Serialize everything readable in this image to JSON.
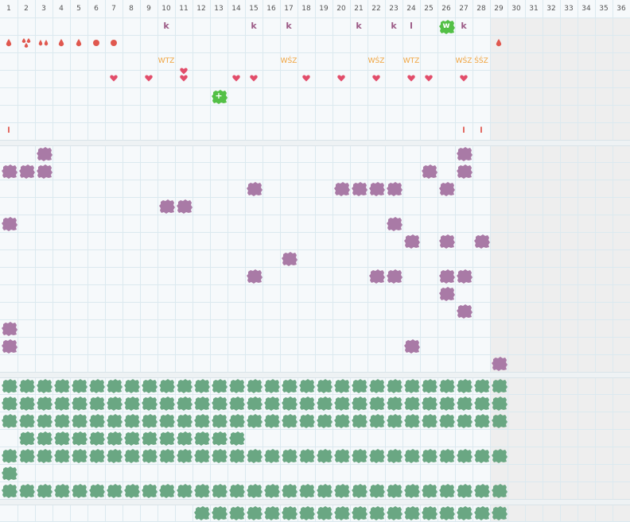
{
  "days": [
    "1",
    "2",
    "3",
    "4",
    "5",
    "6",
    "7",
    "8",
    "9",
    "10",
    "11",
    "12",
    "13",
    "14",
    "15",
    "16",
    "17",
    "18",
    "19",
    "20",
    "21",
    "22",
    "23",
    "24",
    "25",
    "26",
    "27",
    "28",
    "29",
    "30",
    "31",
    "32",
    "33",
    "34",
    "35",
    "36"
  ],
  "colors": {
    "purple_blob": "#a97aa6",
    "green_blob": "#6aa783",
    "bright_green": "#53c046",
    "heart_red": "#e24d6a",
    "drop_red": "#e0584f",
    "letter_purple": "#9c5a86",
    "text_orange": "#f0a23a",
    "grid_line": "#dbe9ef",
    "off_month": "#eeeeee"
  },
  "top_rows": {
    "k_marks": [
      {
        "day": 10,
        "text": "k"
      },
      {
        "day": 15,
        "text": "k"
      },
      {
        "day": 17,
        "text": "k"
      },
      {
        "day": 21,
        "text": "k"
      },
      {
        "day": 23,
        "text": "k"
      },
      {
        "day": 24,
        "text": "l"
      },
      {
        "day": 27,
        "text": "k"
      }
    ],
    "w_badge": {
      "day": 26,
      "text": "w"
    },
    "drops": [
      {
        "day": 1,
        "icon": "drop-icon",
        "size": "s"
      },
      {
        "day": 2,
        "icon": "drops-icon",
        "size": "m"
      },
      {
        "day": 3,
        "icon": "drops-pair-icon",
        "size": "s"
      },
      {
        "day": 4,
        "icon": "drop-icon",
        "size": "s"
      },
      {
        "day": 5,
        "icon": "drop-icon",
        "size": "s"
      },
      {
        "day": 6,
        "icon": "dot-icon",
        "size": "m"
      },
      {
        "day": 7,
        "icon": "dot-icon",
        "size": "m"
      },
      {
        "day": 29,
        "icon": "drop-icon",
        "size": "s"
      }
    ],
    "labels": [
      {
        "day": 10,
        "text": "WTZ"
      },
      {
        "day": 17,
        "text": "WŚZ"
      },
      {
        "day": 22,
        "text": "WŚZ"
      },
      {
        "day": 24,
        "text": "WTZ"
      },
      {
        "day": 27,
        "text": "WŚZ"
      },
      {
        "day": 28,
        "text": "ŚŚZ"
      }
    ],
    "hearts": [
      7,
      9,
      11,
      14,
      15,
      18,
      20,
      22,
      24,
      25,
      27
    ],
    "plus_badge": {
      "day": 13,
      "text": "+"
    },
    "l_marks": [
      {
        "day": 1,
        "text": "l"
      },
      {
        "day": 27,
        "text": "l"
      },
      {
        "day": 28,
        "text": "l"
      }
    ]
  },
  "purple_rows": [
    [
      3,
      27
    ],
    [
      1,
      2,
      3,
      25,
      27
    ],
    [
      15,
      20,
      21,
      22,
      23,
      26
    ],
    [
      10,
      11
    ],
    [
      1,
      23
    ],
    [
      24,
      26,
      28
    ],
    [
      17
    ],
    [
      15,
      22,
      23,
      26,
      27
    ],
    [
      26
    ],
    [
      27
    ],
    [
      1
    ],
    [
      1,
      24
    ],
    [
      29
    ]
  ],
  "green_rows": [
    {
      "from": 1,
      "to": 29
    },
    {
      "from": 1,
      "to": 29
    },
    {
      "from": 1,
      "to": 29
    },
    {
      "from": 2,
      "to": 14
    },
    {
      "from": 1,
      "to": 29
    },
    {
      "from": 1,
      "to": 1
    },
    {
      "from": 1,
      "to": 29
    }
  ],
  "bottom_row": {
    "from": 12,
    "to": 29
  }
}
